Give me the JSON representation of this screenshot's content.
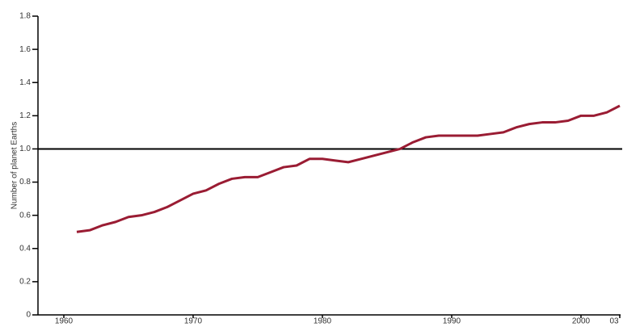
{
  "chart_data": {
    "type": "line",
    "y_label": "Number of planet Earths",
    "x": [
      1961,
      1962,
      1963,
      1964,
      1965,
      1966,
      1967,
      1968,
      1969,
      1970,
      1971,
      1972,
      1973,
      1974,
      1975,
      1976,
      1977,
      1978,
      1979,
      1980,
      1981,
      1982,
      1983,
      1984,
      1985,
      1986,
      1987,
      1988,
      1989,
      1990,
      1991,
      1992,
      1993,
      1994,
      1995,
      1996,
      1997,
      1998,
      1999,
      2000,
      2001,
      2002,
      2003
    ],
    "series": [
      {
        "color": "#9a1c33",
        "values": [
          0.5,
          0.51,
          0.54,
          0.56,
          0.59,
          0.6,
          0.62,
          0.65,
          0.69,
          0.73,
          0.75,
          0.79,
          0.82,
          0.83,
          0.83,
          0.86,
          0.89,
          0.9,
          0.94,
          0.94,
          0.93,
          0.92,
          0.94,
          0.96,
          0.98,
          1.0,
          1.04,
          1.07,
          1.08,
          1.08,
          1.08,
          1.08,
          1.09,
          1.1,
          1.13,
          1.15,
          1.16,
          1.16,
          1.17,
          1.2,
          1.2,
          1.22,
          1.26
        ]
      }
    ],
    "xlim": [
      1958,
      2003
    ],
    "xticks": [
      1960,
      1970,
      1980,
      1990,
      2000,
      {
        "value": 2003,
        "label": "03"
      }
    ],
    "ylim": [
      0,
      1.8
    ],
    "yticks": [
      0,
      0.2,
      0.4,
      0.6,
      0.8,
      {
        "value": 1,
        "label": "1.0"
      },
      1.2,
      1.4,
      1.6,
      1.8
    ],
    "reference_line": 1
  }
}
